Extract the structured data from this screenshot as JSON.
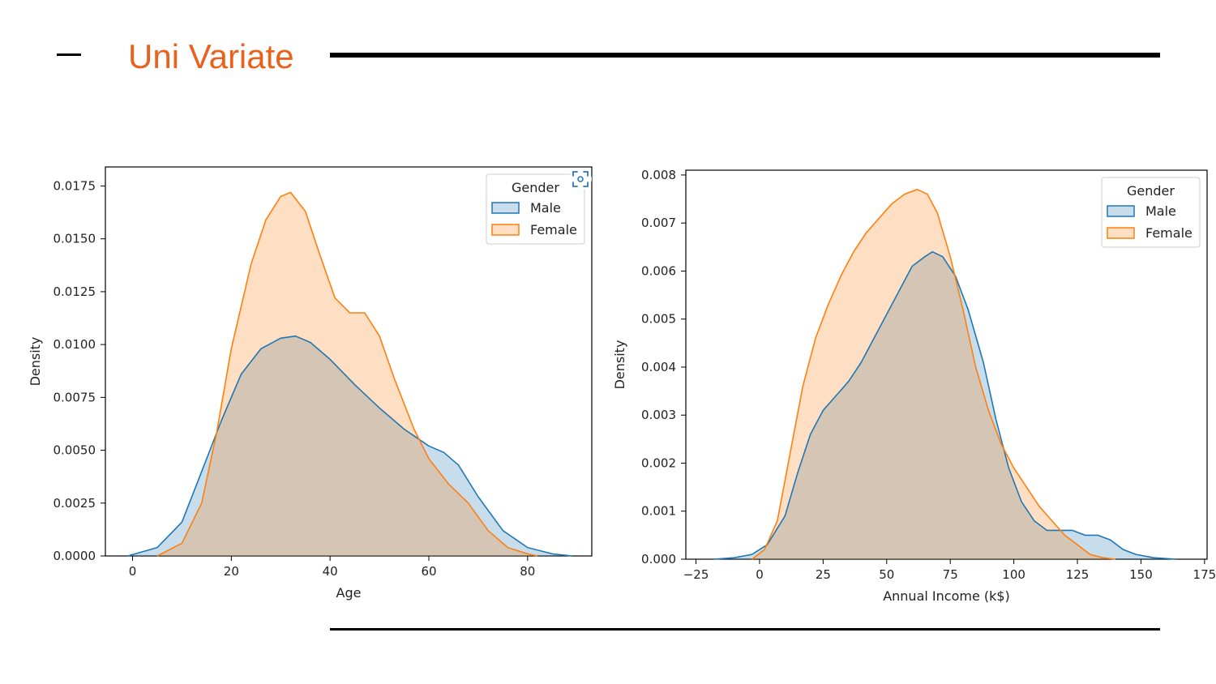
{
  "slide": {
    "title": "Uni Variate"
  },
  "chart_data": [
    {
      "type": "area",
      "title": "",
      "xlabel": "Age",
      "ylabel": "Density",
      "xlim": [
        -5.5,
        93
      ],
      "ylim": [
        0,
        0.0184
      ],
      "x_ticks": [
        0,
        20,
        40,
        60,
        80
      ],
      "x_tick_labels": [
        "0",
        "20",
        "40",
        "60",
        "80"
      ],
      "y_ticks": [
        0,
        0.0025,
        0.005,
        0.0075,
        0.01,
        0.0125,
        0.015,
        0.0175
      ],
      "y_tick_labels": [
        "0.0000",
        "0.0025",
        "0.0050",
        "0.0075",
        "0.0100",
        "0.0125",
        "0.0150",
        "0.0175"
      ],
      "grid": false,
      "legend": {
        "title": "Gender",
        "placement": "top-right"
      },
      "series": [
        {
          "name": "Male",
          "color": "#1f77b4",
          "points": [
            [
              -1,
              0
            ],
            [
              5,
              0.0004
            ],
            [
              10,
              0.0016
            ],
            [
              15,
              0.0046
            ],
            [
              18,
              0.0064
            ],
            [
              22,
              0.0086
            ],
            [
              26,
              0.0098
            ],
            [
              30,
              0.0103
            ],
            [
              33,
              0.0104
            ],
            [
              36,
              0.0101
            ],
            [
              40,
              0.0093
            ],
            [
              45,
              0.0081
            ],
            [
              50,
              0.007
            ],
            [
              55,
              0.006
            ],
            [
              60,
              0.0052
            ],
            [
              63,
              0.0049
            ],
            [
              66,
              0.0043
            ],
            [
              70,
              0.0028
            ],
            [
              75,
              0.0012
            ],
            [
              80,
              0.0004
            ],
            [
              85,
              0.0001
            ],
            [
              89,
              0
            ]
          ]
        },
        {
          "name": "Female",
          "color": "#ff7f0e",
          "points": [
            [
              5,
              0
            ],
            [
              10,
              0.0006
            ],
            [
              14,
              0.0025
            ],
            [
              17,
              0.0058
            ],
            [
              20,
              0.0098
            ],
            [
              24,
              0.0138
            ],
            [
              27,
              0.0159
            ],
            [
              30,
              0.017
            ],
            [
              32,
              0.0172
            ],
            [
              35,
              0.0163
            ],
            [
              38,
              0.0142
            ],
            [
              41,
              0.0122
            ],
            [
              44,
              0.0115
            ],
            [
              47,
              0.0115
            ],
            [
              50,
              0.0104
            ],
            [
              53,
              0.0084
            ],
            [
              57,
              0.006
            ],
            [
              60,
              0.0046
            ],
            [
              64,
              0.0034
            ],
            [
              68,
              0.0025
            ],
            [
              72,
              0.0012
            ],
            [
              76,
              0.0004
            ],
            [
              80,
              0.0001
            ],
            [
              82,
              0
            ]
          ]
        }
      ]
    },
    {
      "type": "area",
      "title": "",
      "xlabel": "Annual Income (k$)",
      "ylabel": "Density",
      "xlim": [
        -29,
        176
      ],
      "ylim": [
        0,
        0.0081
      ],
      "x_ticks": [
        -25,
        0,
        25,
        50,
        75,
        100,
        125,
        150,
        175
      ],
      "x_tick_labels": [
        "−25",
        "0",
        "25",
        "50",
        "75",
        "100",
        "125",
        "150",
        "175"
      ],
      "y_ticks": [
        0,
        0.001,
        0.002,
        0.003,
        0.004,
        0.005,
        0.006,
        0.007,
        0.008
      ],
      "y_tick_labels": [
        "0.000",
        "0.001",
        "0.002",
        "0.003",
        "0.004",
        "0.005",
        "0.006",
        "0.007",
        "0.008"
      ],
      "grid": false,
      "legend": {
        "title": "Gender",
        "placement": "top-right"
      },
      "series": [
        {
          "name": "Male",
          "color": "#1f77b4",
          "points": [
            [
              -18,
              0
            ],
            [
              -10,
              3e-05
            ],
            [
              -3,
              0.0001
            ],
            [
              3,
              0.0003
            ],
            [
              10,
              0.0009
            ],
            [
              15,
              0.0018
            ],
            [
              20,
              0.0026
            ],
            [
              25,
              0.0031
            ],
            [
              30,
              0.0034
            ],
            [
              35,
              0.0037
            ],
            [
              40,
              0.0041
            ],
            [
              45,
              0.0046
            ],
            [
              50,
              0.0051
            ],
            [
              55,
              0.0056
            ],
            [
              60,
              0.0061
            ],
            [
              65,
              0.0063
            ],
            [
              68,
              0.0064
            ],
            [
              72,
              0.0063
            ],
            [
              77,
              0.0059
            ],
            [
              82,
              0.0052
            ],
            [
              88,
              0.0041
            ],
            [
              93,
              0.0029
            ],
            [
              98,
              0.0019
            ],
            [
              103,
              0.0012
            ],
            [
              108,
              0.0008
            ],
            [
              113,
              0.0006
            ],
            [
              118,
              0.0006
            ],
            [
              123,
              0.0006
            ],
            [
              128,
              0.0005
            ],
            [
              133,
              0.0005
            ],
            [
              138,
              0.0004
            ],
            [
              143,
              0.0002
            ],
            [
              148,
              0.0001
            ],
            [
              155,
              3e-05
            ],
            [
              164,
              0
            ]
          ]
        },
        {
          "name": "Female",
          "color": "#ff7f0e",
          "points": [
            [
              -3,
              0
            ],
            [
              2,
              0.0002
            ],
            [
              7,
              0.0008
            ],
            [
              12,
              0.0022
            ],
            [
              17,
              0.0036
            ],
            [
              22,
              0.0046
            ],
            [
              27,
              0.0053
            ],
            [
              32,
              0.0059
            ],
            [
              37,
              0.0064
            ],
            [
              42,
              0.0068
            ],
            [
              47,
              0.0071
            ],
            [
              52,
              0.0074
            ],
            [
              57,
              0.0076
            ],
            [
              62,
              0.0077
            ],
            [
              66,
              0.0076
            ],
            [
              70,
              0.0072
            ],
            [
              75,
              0.0063
            ],
            [
              80,
              0.0052
            ],
            [
              85,
              0.004
            ],
            [
              90,
              0.0031
            ],
            [
              95,
              0.0024
            ],
            [
              100,
              0.0019
            ],
            [
              105,
              0.0015
            ],
            [
              110,
              0.0011
            ],
            [
              115,
              0.0008
            ],
            [
              120,
              0.0005
            ],
            [
              125,
              0.0003
            ],
            [
              130,
              0.0001
            ],
            [
              135,
              3e-05
            ],
            [
              140,
              0
            ]
          ]
        }
      ]
    }
  ]
}
